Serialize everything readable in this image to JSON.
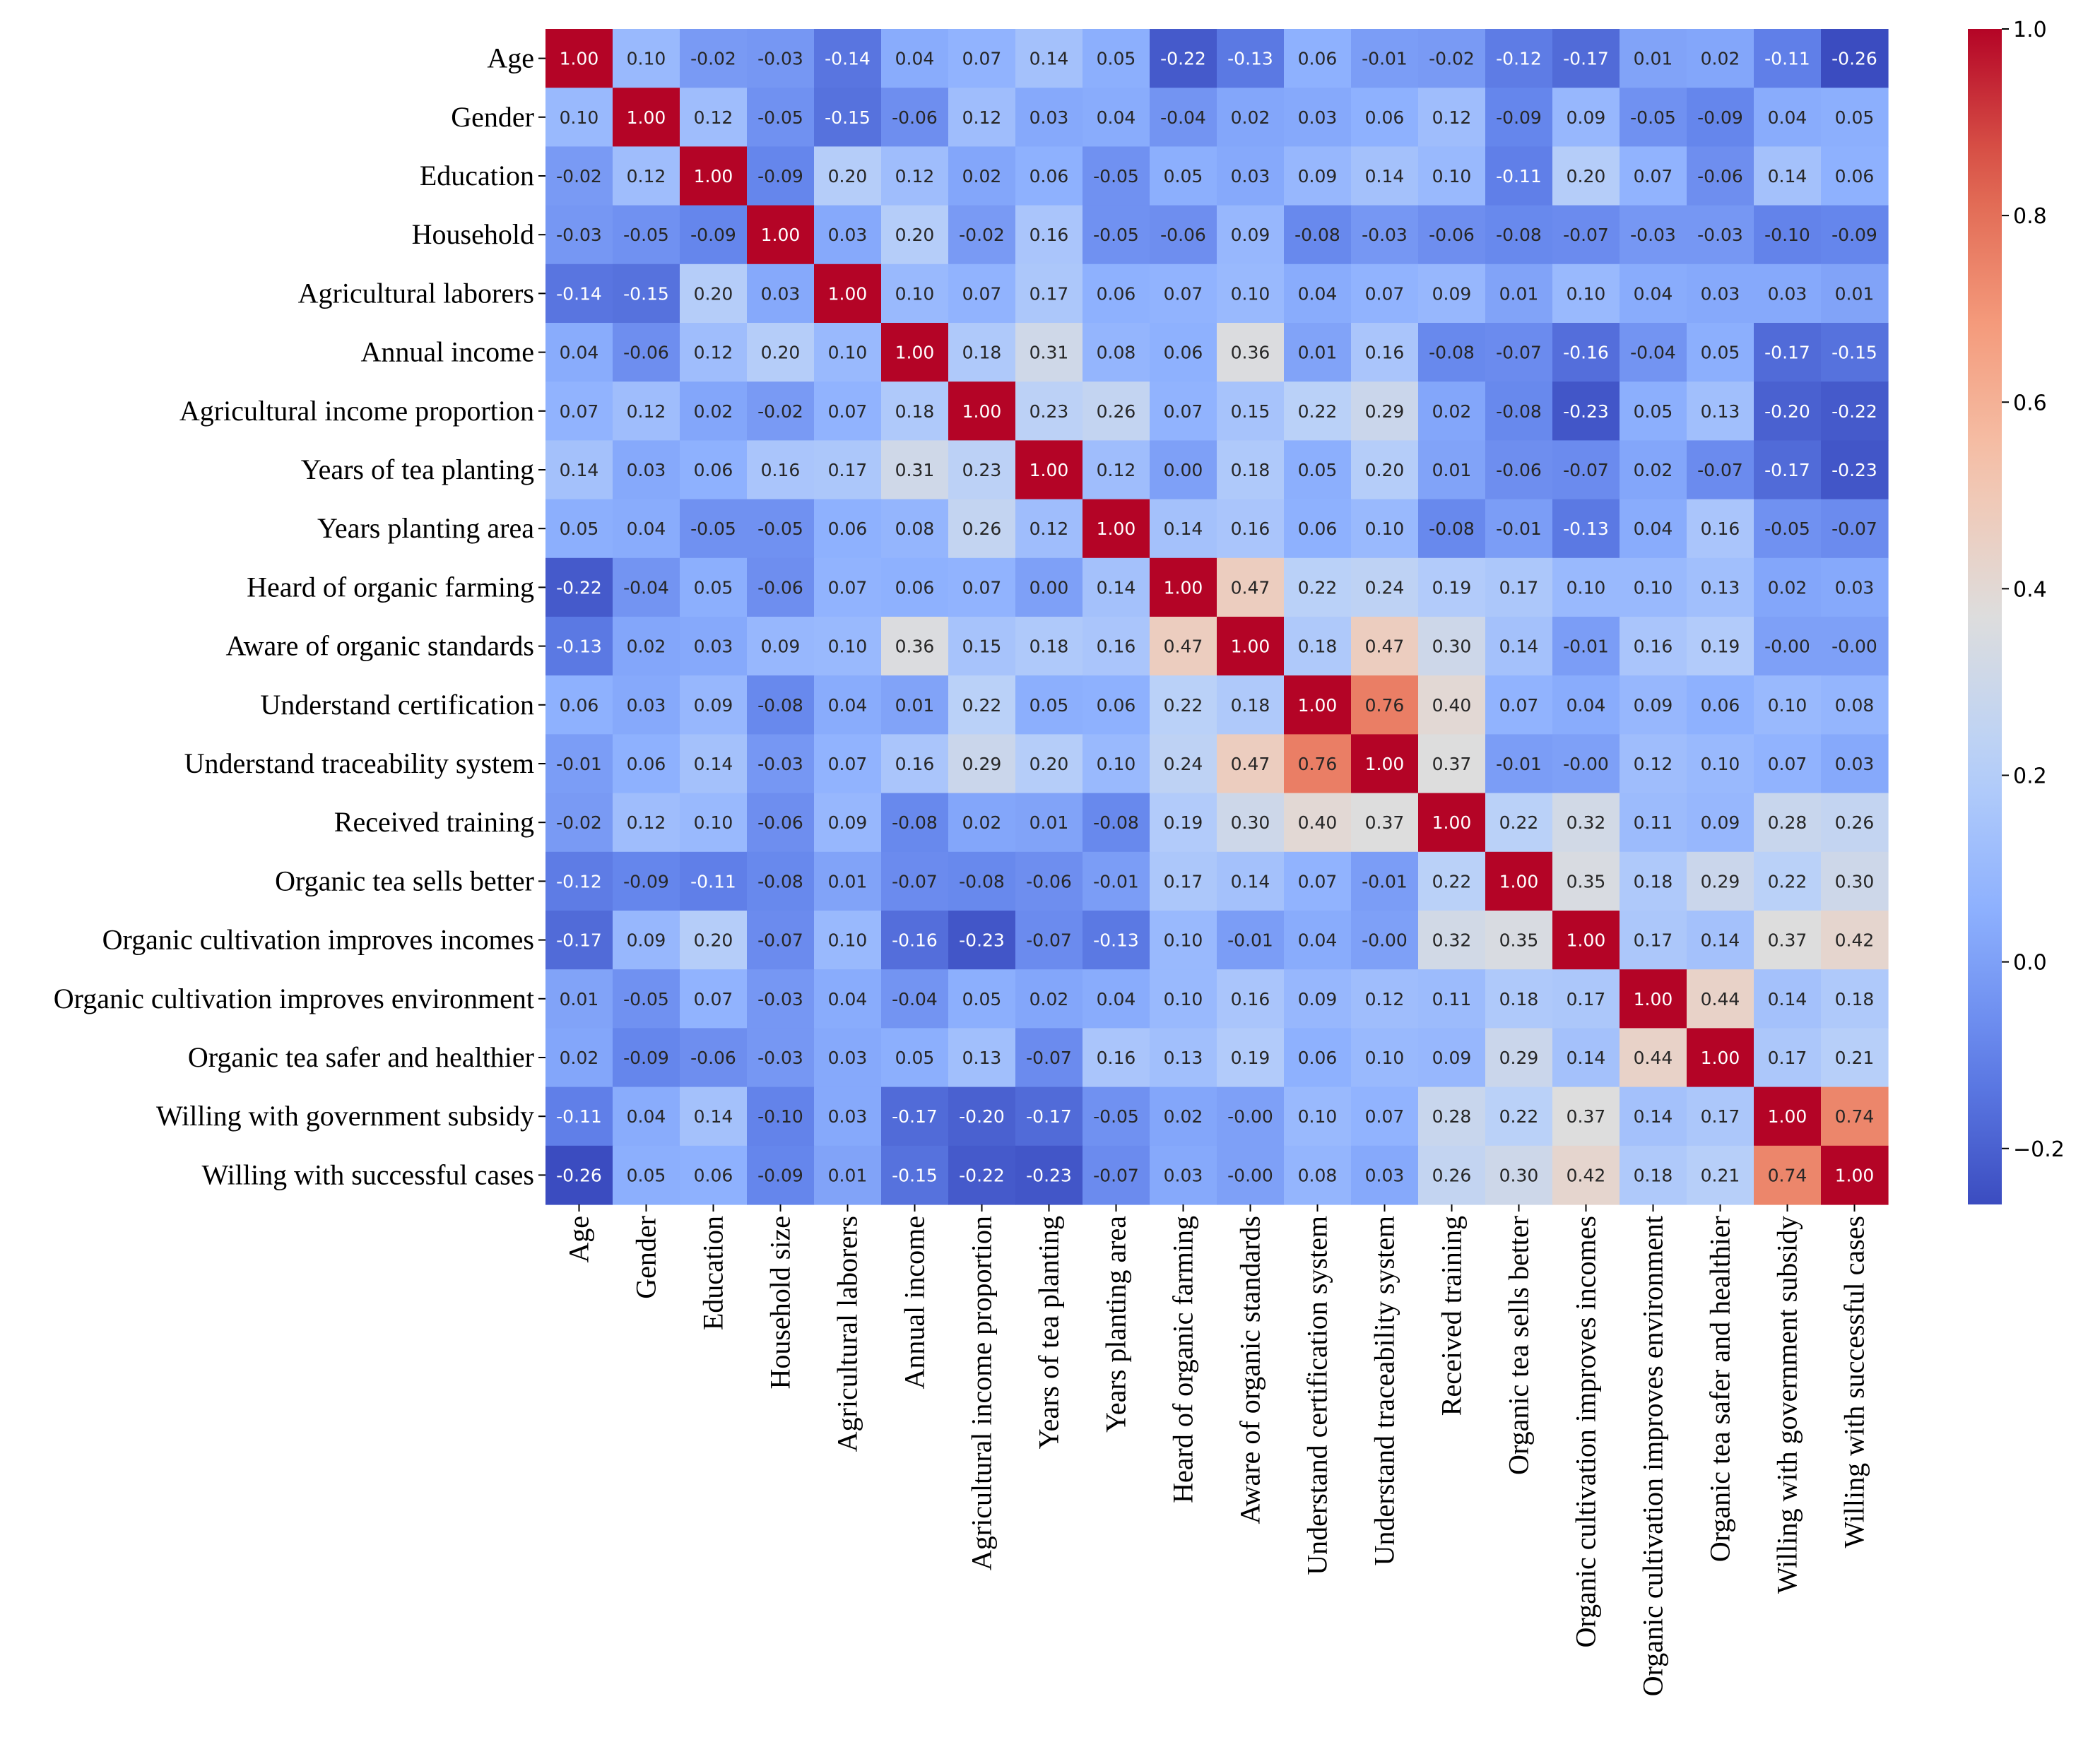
{
  "chart_data": {
    "type": "heatmap",
    "title": "",
    "row_labels": [
      "Age",
      "Gender",
      "Education",
      "Household",
      "Agricultural laborers",
      "Annual income",
      "Agricultural income proportion",
      "Years of tea planting",
      "Years planting area",
      "Heard of organic farming",
      "Aware of organic standards",
      "Understand certification",
      "Understand traceability system",
      "Received training",
      "Organic tea sells better",
      "Organic cultivation improves incomes",
      "Organic cultivation improves environment",
      "Organic tea safer and healthier",
      "Willing with government subsidy",
      "Willing with successful cases"
    ],
    "column_labels": [
      "Age",
      "Gender",
      "Education",
      "Household size",
      "Agricultural laborers",
      "Annual income",
      "Agricultural income proportion",
      "Years of tea planting",
      "Years planting area",
      "Heard of organic farming",
      "Aware of organic standards",
      "Understand certification system",
      "Understand traceability system",
      "Received training",
      "Organic tea sells better",
      "Organic cultivation improves incomes",
      "Organic cultivation improves environment",
      "Organic tea safer and healthier",
      "Willing with government subsidy",
      "Willing with successful cases"
    ],
    "values": [
      [
        "1.00",
        "0.10",
        "-0.02",
        "-0.03",
        "-0.14",
        "0.04",
        "0.07",
        "0.14",
        "0.05",
        "-0.22",
        "-0.13",
        "0.06",
        "-0.01",
        "-0.02",
        "-0.12",
        "-0.17",
        "0.01",
        "0.02",
        "-0.11",
        "-0.26"
      ],
      [
        "0.10",
        "1.00",
        "0.12",
        "-0.05",
        "-0.15",
        "-0.06",
        "0.12",
        "0.03",
        "0.04",
        "-0.04",
        "0.02",
        "0.03",
        "0.06",
        "0.12",
        "-0.09",
        "0.09",
        "-0.05",
        "-0.09",
        "0.04",
        "0.05"
      ],
      [
        "-0.02",
        "0.12",
        "1.00",
        "-0.09",
        "0.20",
        "0.12",
        "0.02",
        "0.06",
        "-0.05",
        "0.05",
        "0.03",
        "0.09",
        "0.14",
        "0.10",
        "-0.11",
        "0.20",
        "0.07",
        "-0.06",
        "0.14",
        "0.06"
      ],
      [
        "-0.03",
        "-0.05",
        "-0.09",
        "1.00",
        "0.03",
        "0.20",
        "-0.02",
        "0.16",
        "-0.05",
        "-0.06",
        "0.09",
        "-0.08",
        "-0.03",
        "-0.06",
        "-0.08",
        "-0.07",
        "-0.03",
        "-0.03",
        "-0.10",
        "-0.09"
      ],
      [
        "-0.14",
        "-0.15",
        "0.20",
        "0.03",
        "1.00",
        "0.10",
        "0.07",
        "0.17",
        "0.06",
        "0.07",
        "0.10",
        "0.04",
        "0.07",
        "0.09",
        "0.01",
        "0.10",
        "0.04",
        "0.03",
        "0.03",
        "0.01"
      ],
      [
        "0.04",
        "-0.06",
        "0.12",
        "0.20",
        "0.10",
        "1.00",
        "0.18",
        "0.31",
        "0.08",
        "0.06",
        "0.36",
        "0.01",
        "0.16",
        "-0.08",
        "-0.07",
        "-0.16",
        "-0.04",
        "0.05",
        "-0.17",
        "-0.15"
      ],
      [
        "0.07",
        "0.12",
        "0.02",
        "-0.02",
        "0.07",
        "0.18",
        "1.00",
        "0.23",
        "0.26",
        "0.07",
        "0.15",
        "0.22",
        "0.29",
        "0.02",
        "-0.08",
        "-0.23",
        "0.05",
        "0.13",
        "-0.20",
        "-0.22"
      ],
      [
        "0.14",
        "0.03",
        "0.06",
        "0.16",
        "0.17",
        "0.31",
        "0.23",
        "1.00",
        "0.12",
        "0.00",
        "0.18",
        "0.05",
        "0.20",
        "0.01",
        "-0.06",
        "-0.07",
        "0.02",
        "-0.07",
        "-0.17",
        "-0.23"
      ],
      [
        "0.05",
        "0.04",
        "-0.05",
        "-0.05",
        "0.06",
        "0.08",
        "0.26",
        "0.12",
        "1.00",
        "0.14",
        "0.16",
        "0.06",
        "0.10",
        "-0.08",
        "-0.01",
        "-0.13",
        "0.04",
        "0.16",
        "-0.05",
        "-0.07"
      ],
      [
        "-0.22",
        "-0.04",
        "0.05",
        "-0.06",
        "0.07",
        "0.06",
        "0.07",
        "0.00",
        "0.14",
        "1.00",
        "0.47",
        "0.22",
        "0.24",
        "0.19",
        "0.17",
        "0.10",
        "0.10",
        "0.13",
        "0.02",
        "0.03"
      ],
      [
        "-0.13",
        "0.02",
        "0.03",
        "0.09",
        "0.10",
        "0.36",
        "0.15",
        "0.18",
        "0.16",
        "0.47",
        "1.00",
        "0.18",
        "0.47",
        "0.30",
        "0.14",
        "-0.01",
        "0.16",
        "0.19",
        "-0.00",
        "-0.00"
      ],
      [
        "0.06",
        "0.03",
        "0.09",
        "-0.08",
        "0.04",
        "0.01",
        "0.22",
        "0.05",
        "0.06",
        "0.22",
        "0.18",
        "1.00",
        "0.76",
        "0.40",
        "0.07",
        "0.04",
        "0.09",
        "0.06",
        "0.10",
        "0.08"
      ],
      [
        "-0.01",
        "0.06",
        "0.14",
        "-0.03",
        "0.07",
        "0.16",
        "0.29",
        "0.20",
        "0.10",
        "0.24",
        "0.47",
        "0.76",
        "1.00",
        "0.37",
        "-0.01",
        "-0.00",
        "0.12",
        "0.10",
        "0.07",
        "0.03"
      ],
      [
        "-0.02",
        "0.12",
        "0.10",
        "-0.06",
        "0.09",
        "-0.08",
        "0.02",
        "0.01",
        "-0.08",
        "0.19",
        "0.30",
        "0.40",
        "0.37",
        "1.00",
        "0.22",
        "0.32",
        "0.11",
        "0.09",
        "0.28",
        "0.26"
      ],
      [
        "-0.12",
        "-0.09",
        "-0.11",
        "-0.08",
        "0.01",
        "-0.07",
        "-0.08",
        "-0.06",
        "-0.01",
        "0.17",
        "0.14",
        "0.07",
        "-0.01",
        "0.22",
        "1.00",
        "0.35",
        "0.18",
        "0.29",
        "0.22",
        "0.30"
      ],
      [
        "-0.17",
        "0.09",
        "0.20",
        "-0.07",
        "0.10",
        "-0.16",
        "-0.23",
        "-0.07",
        "-0.13",
        "0.10",
        "-0.01",
        "0.04",
        "-0.00",
        "0.32",
        "0.35",
        "1.00",
        "0.17",
        "0.14",
        "0.37",
        "0.42"
      ],
      [
        "0.01",
        "-0.05",
        "0.07",
        "-0.03",
        "0.04",
        "-0.04",
        "0.05",
        "0.02",
        "0.04",
        "0.10",
        "0.16",
        "0.09",
        "0.12",
        "0.11",
        "0.18",
        "0.17",
        "1.00",
        "0.44",
        "0.14",
        "0.18"
      ],
      [
        "0.02",
        "-0.09",
        "-0.06",
        "-0.03",
        "0.03",
        "0.05",
        "0.13",
        "-0.07",
        "0.16",
        "0.13",
        "0.19",
        "0.06",
        "0.10",
        "0.09",
        "0.29",
        "0.14",
        "0.44",
        "1.00",
        "0.17",
        "0.21"
      ],
      [
        "-0.11",
        "0.04",
        "0.14",
        "-0.10",
        "0.03",
        "-0.17",
        "-0.20",
        "-0.17",
        "-0.05",
        "0.02",
        "-0.00",
        "0.10",
        "0.07",
        "0.28",
        "0.22",
        "0.37",
        "0.14",
        "0.17",
        "1.00",
        "0.74"
      ],
      [
        "-0.26",
        "0.05",
        "0.06",
        "-0.09",
        "0.01",
        "-0.15",
        "-0.22",
        "-0.23",
        "-0.07",
        "0.03",
        "-0.00",
        "0.08",
        "0.03",
        "0.26",
        "0.30",
        "0.42",
        "0.18",
        "0.21",
        "0.74",
        "1.00"
      ]
    ],
    "colorbar": {
      "colormap": "coolwarm",
      "vmin": -0.26,
      "vmax": 1.0,
      "ticks": [
        1.0,
        0.8,
        0.6,
        0.4,
        0.2,
        0.0,
        -0.2
      ],
      "tick_labels": [
        "1.0",
        "0.8",
        "0.6",
        "0.4",
        "0.2",
        "0.0",
        "−0.2"
      ]
    }
  }
}
